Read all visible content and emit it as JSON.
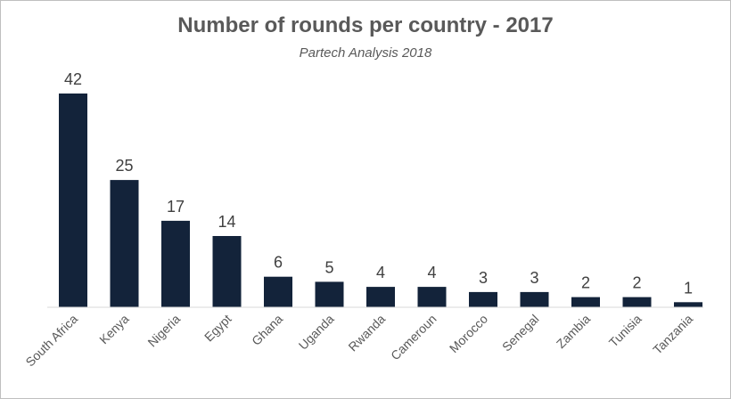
{
  "chart_data": {
    "type": "bar",
    "title": "Number of rounds per country - 2017",
    "subtitle": "Partech Analysis 2018",
    "xlabel": "",
    "ylabel": "",
    "categories": [
      "South Africa",
      "Kenya",
      "Nigeria",
      "Egypt",
      "Ghana",
      "Uganda",
      "Rwanda",
      "Cameroun",
      "Morocco",
      "Senegal",
      "Zambia",
      "Tunisia",
      "Tanzania"
    ],
    "values": [
      42,
      25,
      17,
      14,
      6,
      5,
      4,
      4,
      3,
      3,
      2,
      2,
      1
    ],
    "ylim": [
      0,
      42
    ],
    "grid": false,
    "legend": "none",
    "bar_color": "#13233a"
  }
}
